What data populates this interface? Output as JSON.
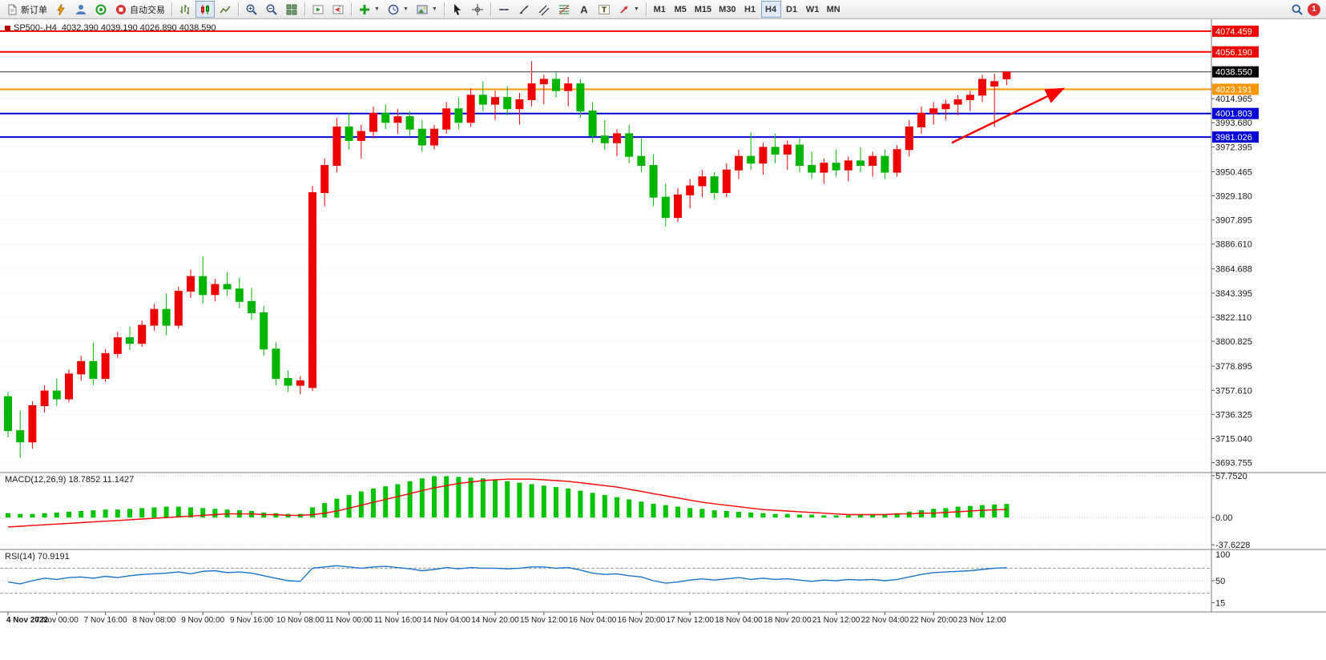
{
  "toolbar": {
    "new_order_label": "新订单",
    "auto_trading_label": "自动交易",
    "timeframes": [
      "M1",
      "M5",
      "M15",
      "M30",
      "H1",
      "H4",
      "D1",
      "W1",
      "MN"
    ],
    "active_timeframe": "H4",
    "notification_count": "1"
  },
  "chart_header": {
    "symbol_info": "SP500-,H4  4032.390 4039.190 4026.890 4038.590"
  },
  "chart_data": {
    "type": "candlestick",
    "symbol": "SP500-",
    "timeframe": "H4",
    "price_range": [
      3685,
      4085
    ],
    "colors": {
      "up": "#ee0000",
      "down": "#00b400",
      "macd_hist": "#00c300",
      "macd_signal": "#ff0000",
      "rsi_line": "#1874cd",
      "grid": "#e4e4e4"
    },
    "axis_ticks": [
      4014.965,
      3993.68,
      3972.395,
      3950.465,
      3929.18,
      3907.895,
      3886.61,
      3864.688,
      3843.395,
      3822.11,
      3800.825,
      3778.895,
      3757.61,
      3736.325,
      3715.04,
      3693.755
    ],
    "hlines": [
      {
        "price": 4074.459,
        "color": "#ff0000",
        "width": 2,
        "tag": "4074.459",
        "tag_bg": "#f20000"
      },
      {
        "price": 4056.19,
        "color": "#ff0000",
        "width": 2,
        "tag": "4056.190",
        "tag_bg": "#f20000"
      },
      {
        "price": 4038.55,
        "color": "#333333",
        "width": 1,
        "tag": "4038.550",
        "tag_bg": "#000000"
      },
      {
        "price": 4023.191,
        "color": "#ff9500",
        "width": 2,
        "tag": "4023.191",
        "tag_bg": "#ff9500"
      },
      {
        "price": 4001.803,
        "color": "#0000d7",
        "width": 2,
        "tag": "4001.803",
        "tag_bg": "#0000d7"
      },
      {
        "price": 3981.026,
        "color": "#0000d7",
        "width": 2,
        "tag": "3981.026",
        "tag_bg": "#0000d7"
      }
    ],
    "ohlc": [
      [
        3752,
        3756,
        3716,
        3722
      ],
      [
        3722,
        3740,
        3698,
        3712
      ],
      [
        3712,
        3748,
        3706,
        3744
      ],
      [
        3744,
        3762,
        3738,
        3757
      ],
      [
        3757,
        3768,
        3744,
        3750
      ],
      [
        3750,
        3776,
        3747,
        3772
      ],
      [
        3772,
        3788,
        3766,
        3783
      ],
      [
        3783,
        3800,
        3762,
        3768
      ],
      [
        3768,
        3794,
        3765,
        3790
      ],
      [
        3790,
        3809,
        3786,
        3804
      ],
      [
        3804,
        3814,
        3793,
        3799
      ],
      [
        3799,
        3819,
        3796,
        3815
      ],
      [
        3815,
        3834,
        3810,
        3829
      ],
      [
        3829,
        3843,
        3806,
        3815
      ],
      [
        3815,
        3849,
        3812,
        3845
      ],
      [
        3845,
        3864,
        3839,
        3858
      ],
      [
        3858,
        3876,
        3834,
        3842
      ],
      [
        3842,
        3856,
        3836,
        3851
      ],
      [
        3851,
        3862,
        3841,
        3847
      ],
      [
        3847,
        3857,
        3830,
        3836
      ],
      [
        3836,
        3848,
        3820,
        3826
      ],
      [
        3826,
        3832,
        3788,
        3794
      ],
      [
        3794,
        3800,
        3762,
        3768
      ],
      [
        3768,
        3775,
        3756,
        3762
      ],
      [
        3762,
        3770,
        3754,
        3766
      ],
      [
        3760,
        3938,
        3757,
        3932
      ],
      [
        3932,
        3962,
        3920,
        3956
      ],
      [
        3956,
        3998,
        3950,
        3990
      ],
      [
        3990,
        4002,
        3970,
        3978
      ],
      [
        3978,
        3992,
        3962,
        3986
      ],
      [
        3986,
        4008,
        3980,
        4002
      ],
      [
        4002,
        4010,
        3988,
        3994
      ],
      [
        3994,
        4006,
        3984,
        3999
      ],
      [
        3999,
        4004,
        3982,
        3988
      ],
      [
        3988,
        3996,
        3968,
        3974
      ],
      [
        3974,
        3992,
        3970,
        3988
      ],
      [
        3988,
        4012,
        3984,
        4006
      ],
      [
        4006,
        4016,
        3988,
        3994
      ],
      [
        3994,
        4024,
        3990,
        4018
      ],
      [
        4018,
        4030,
        4004,
        4010
      ],
      [
        4010,
        4022,
        3996,
        4016
      ],
      [
        4016,
        4026,
        4000,
        4006
      ],
      [
        4006,
        4020,
        3992,
        4014
      ],
      [
        4014,
        4048,
        4008,
        4028
      ],
      [
        4028,
        4036,
        4010,
        4032
      ],
      [
        4032,
        4038,
        4016,
        4022
      ],
      [
        4022,
        4034,
        4008,
        4028
      ],
      [
        4028,
        4032,
        3998,
        4004
      ],
      [
        4004,
        4012,
        3976,
        3982
      ],
      [
        3982,
        3996,
        3970,
        3976
      ],
      [
        3976,
        3988,
        3964,
        3984
      ],
      [
        3984,
        3992,
        3958,
        3964
      ],
      [
        3964,
        3980,
        3950,
        3956
      ],
      [
        3956,
        3966,
        3920,
        3928
      ],
      [
        3928,
        3940,
        3902,
        3910
      ],
      [
        3910,
        3936,
        3906,
        3930
      ],
      [
        3930,
        3944,
        3918,
        3938
      ],
      [
        3938,
        3952,
        3928,
        3946
      ],
      [
        3946,
        3950,
        3926,
        3932
      ],
      [
        3932,
        3958,
        3928,
        3952
      ],
      [
        3952,
        3970,
        3944,
        3964
      ],
      [
        3964,
        3985,
        3952,
        3958
      ],
      [
        3958,
        3976,
        3948,
        3972
      ],
      [
        3972,
        3984,
        3958,
        3966
      ],
      [
        3966,
        3978,
        3952,
        3974
      ],
      [
        3974,
        3980,
        3950,
        3956
      ],
      [
        3956,
        3968,
        3944,
        3950
      ],
      [
        3950,
        3962,
        3940,
        3958
      ],
      [
        3958,
        3970,
        3946,
        3952
      ],
      [
        3952,
        3964,
        3942,
        3960
      ],
      [
        3960,
        3972,
        3950,
        3956
      ],
      [
        3956,
        3968,
        3946,
        3964
      ],
      [
        3964,
        3970,
        3944,
        3950
      ],
      [
        3950,
        3974,
        3946,
        3970
      ],
      [
        3970,
        3996,
        3964,
        3990
      ],
      [
        3990,
        4008,
        3984,
        4002
      ],
      [
        4002,
        4012,
        3992,
        4006
      ],
      [
        4006,
        4014,
        3996,
        4010
      ],
      [
        4010,
        4018,
        4000,
        4014
      ],
      [
        4014,
        4022,
        4004,
        4018
      ],
      [
        4018,
        4036,
        4012,
        4032
      ],
      [
        4026,
        4037,
        3990,
        4030
      ],
      [
        4032.39,
        4039.19,
        4026.89,
        4038.59
      ]
    ],
    "time_labels": [
      "4 Nov 2022",
      "7 Nov 00:00",
      "7 Nov 16:00",
      "8 Nov 08:00",
      "9 Nov 00:00",
      "9 Nov 16:00",
      "10 Nov 08:00",
      "11 Nov 00:00",
      "11 Nov 16:00",
      "14 Nov 04:00",
      "14 Nov 20:00",
      "15 Nov 12:00",
      "16 Nov 04:00",
      "16 Nov 20:00",
      "17 Nov 12:00",
      "18 Nov 04:00",
      "18 Nov 20:00",
      "21 Nov 12:00",
      "22 Nov 04:00",
      "22 Nov 20:00",
      "23 Nov 12:00"
    ],
    "time_label_step": 4,
    "trend_arrow": {
      "bar_from": 77.5,
      "price_from": 3976,
      "bar_to": 86.5,
      "price_to": 4023,
      "color": "#ff0000"
    },
    "macd": {
      "label": "MACD(12,26,9) 18.7852 11.1427",
      "axis": [
        {
          "label": "57.7520",
          "value": 57.752
        },
        {
          "label": "0.00",
          "value": 0
        },
        {
          "label": "-37.6228",
          "value": -37.6228
        }
      ],
      "range": [
        -44,
        62
      ],
      "histogram": [
        6,
        5,
        5,
        6,
        7,
        8,
        9,
        10,
        11,
        11,
        12,
        13,
        14,
        15,
        15,
        14,
        13,
        12,
        11,
        10,
        9,
        7,
        6,
        5,
        5,
        14,
        20,
        26,
        31,
        36,
        40,
        43,
        46,
        50,
        54,
        57,
        57,
        56,
        55,
        54,
        52,
        50,
        48,
        46,
        44,
        42,
        40,
        37,
        34,
        31,
        28,
        25,
        22,
        19,
        17,
        15,
        13,
        12,
        10,
        9,
        8,
        7,
        6,
        5,
        5,
        4,
        4,
        3,
        3,
        3,
        4,
        4,
        5,
        6,
        8,
        10,
        12,
        13,
        15,
        16,
        17,
        18,
        18.8
      ],
      "signal": [
        -13,
        -12,
        -11,
        -10,
        -9,
        -8,
        -7,
        -6,
        -5,
        -4,
        -3,
        -2,
        -1,
        0,
        1,
        2,
        3,
        4,
        5,
        5,
        5,
        4,
        4,
        3,
        3,
        4,
        6,
        9,
        13,
        17,
        21,
        25,
        29,
        33,
        37,
        41,
        44,
        47,
        49,
        51,
        52,
        53,
        53,
        53,
        52,
        51,
        50,
        48,
        46,
        44,
        42,
        39,
        36,
        33,
        30,
        27,
        24,
        21,
        19,
        17,
        15,
        13,
        11,
        10,
        9,
        8,
        7,
        6,
        5,
        4,
        4,
        4,
        4,
        5,
        5,
        6,
        6,
        7,
        8,
        9,
        10,
        10.5,
        11.14
      ]
    },
    "rsi": {
      "label": "RSI(14) 70.9191",
      "axis": [
        {
          "label": "100",
          "value": 100
        },
        {
          "label": "50",
          "value": 50
        },
        {
          "label": "15",
          "value": 15
        }
      ],
      "levels": [
        70,
        30
      ],
      "range": [
        0,
        100
      ],
      "values": [
        48,
        45,
        50,
        54,
        52,
        55,
        56,
        54,
        57,
        55,
        58,
        60,
        61,
        62,
        64,
        61,
        65,
        66,
        63,
        64,
        62,
        58,
        54,
        50,
        49,
        70,
        72,
        74,
        72,
        70,
        72,
        73,
        71,
        69,
        66,
        68,
        71,
        69,
        71,
        70,
        70,
        69,
        70,
        72,
        72,
        70,
        71,
        67,
        62,
        60,
        61,
        58,
        56,
        50,
        46,
        48,
        51,
        53,
        51,
        53,
        55,
        52,
        54,
        52,
        53,
        51,
        49,
        51,
        50,
        52,
        51,
        52,
        50,
        52,
        56,
        60,
        63,
        64,
        65,
        66,
        68,
        70,
        70.92
      ]
    }
  }
}
